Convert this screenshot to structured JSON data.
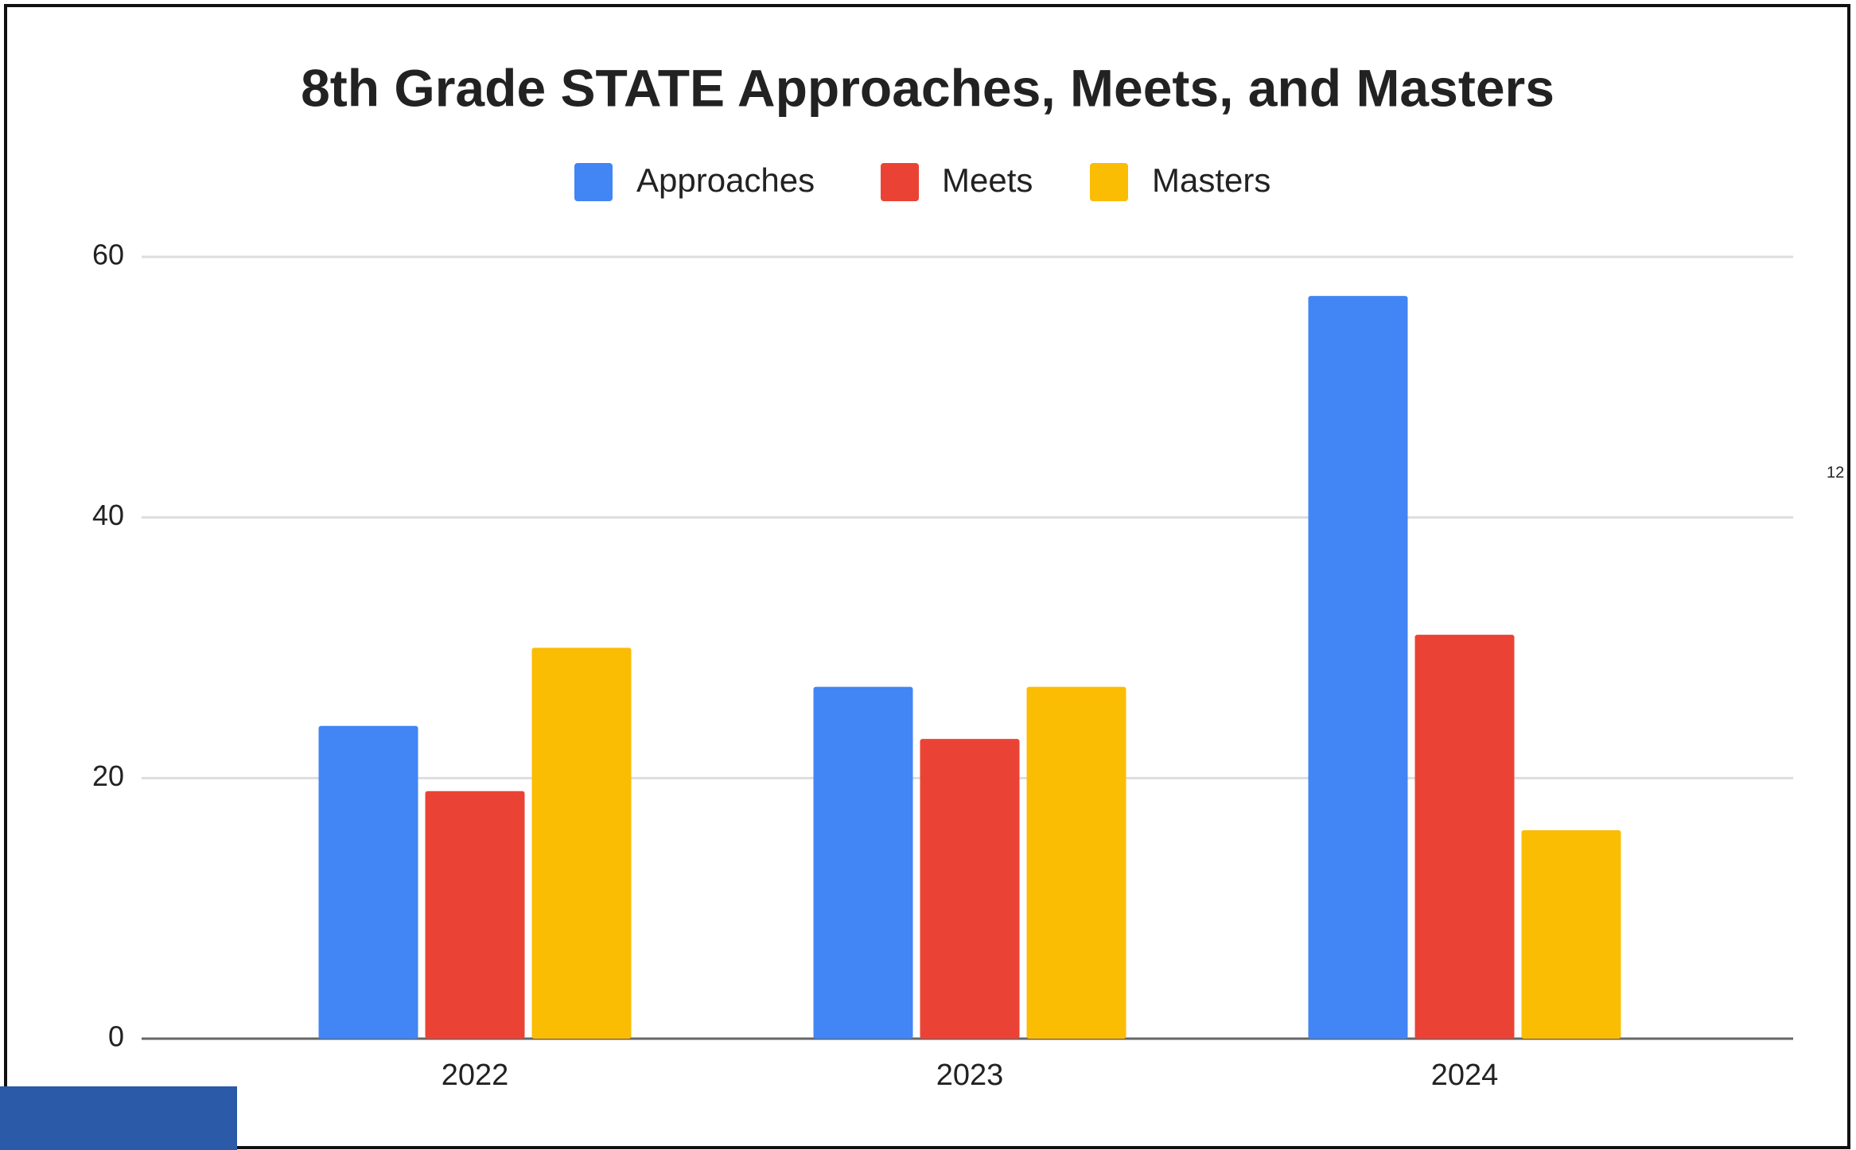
{
  "chart_data": {
    "type": "bar",
    "title": "8th Grade STATE Approaches, Meets, and Masters",
    "categories": [
      "2022",
      "2023",
      "2024"
    ],
    "series": [
      {
        "name": "Approaches",
        "color": "#4285f4",
        "values": [
          24,
          27,
          57
        ]
      },
      {
        "name": "Meets",
        "color": "#ea4335",
        "values": [
          19,
          23,
          31
        ]
      },
      {
        "name": "Masters",
        "color": "#fbbc04",
        "values": [
          30,
          27,
          16
        ]
      }
    ],
    "ylim": [
      0,
      60
    ],
    "yticks": [
      0,
      20,
      40,
      60
    ],
    "grid": true,
    "legend": "top"
  },
  "sheet": {
    "cell_text": "12"
  }
}
